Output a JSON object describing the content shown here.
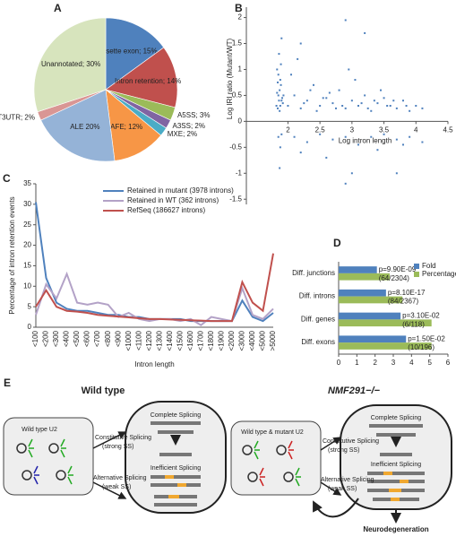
{
  "chart_data": [
    {
      "type": "pie",
      "label": "A",
      "values": [
        15,
        14,
        3,
        2,
        2,
        12,
        20,
        2,
        30
      ],
      "value_labels": [
        "Cassette exon; 15%",
        "Intron retention; 14%",
        "A5SS; 3%",
        "A3SS; 2%",
        "MXE; 2%",
        "AFE; 12%",
        "ALE 20%",
        "T3UTR; 2%",
        "Unannotated; 30%"
      ],
      "colors": [
        "#4f81bd",
        "#c0504d",
        "#9bbb59",
        "#8064a2",
        "#4bacc6",
        "#f79646",
        "#95b3d7",
        "#d99694",
        "#d7e4bd"
      ]
    },
    {
      "type": "scatter",
      "label": "B",
      "x_label": "Log intron length",
      "y_label": "Log IRI ratio (Mutant/WT)",
      "color": "#4f81bd",
      "x": [
        1.82,
        1.85,
        1.88,
        1.9,
        1.83,
        1.87,
        1.92,
        1.84,
        1.86,
        1.89,
        1.91,
        1.85,
        1.88,
        1.83,
        1.9,
        1.86,
        1.87,
        1.84,
        1.93,
        1.89,
        2.0,
        2.1,
        2.2,
        2.3,
        2.4,
        2.5,
        2.6,
        2.7,
        2.8,
        2.9,
        3.0,
        3.1,
        3.2,
        3.3,
        3.4,
        3.5,
        3.6,
        3.7,
        3.8,
        3.9,
        4.0,
        4.1,
        2.05,
        2.25,
        2.45,
        2.65,
        2.85,
        3.05,
        3.25,
        3.45,
        3.65,
        3.85,
        2.15,
        2.35,
        2.55,
        2.75,
        2.95,
        3.15,
        3.35,
        3.55,
        1.85,
        1.88,
        1.9,
        1.87,
        2.1,
        2.3,
        2.5,
        2.7,
        2.9,
        3.1,
        3.3,
        3.5,
        3.7,
        3.9,
        4.1,
        2.2,
        2.6,
        3.0,
        3.4,
        3.8,
        2.9,
        3.2,
        2.2,
        2.9,
        3.7
      ],
      "values": [
        0.3,
        0.5,
        0.8,
        0.4,
        1.0,
        0.6,
        0.35,
        0.25,
        1.3,
        0.7,
        0.45,
        0.9,
        0.3,
        0.55,
        1.6,
        0.4,
        0.2,
        0.75,
        0.5,
        1.1,
        0.3,
        0.5,
        0.25,
        0.4,
        0.7,
        0.3,
        0.45,
        0.35,
        0.6,
        0.25,
        0.4,
        0.3,
        0.5,
        0.2,
        0.35,
        0.45,
        0.3,
        0.25,
        0.4,
        0.2,
        0.3,
        0.25,
        0.9,
        0.35,
        0.2,
        0.55,
        0.3,
        0.8,
        0.25,
        0.6,
        0.4,
        0.3,
        1.2,
        0.6,
        0.45,
        0.25,
        1.0,
        0.35,
        0.4,
        0.3,
        -0.3,
        -0.5,
        -0.25,
        -0.9,
        -0.3,
        -0.4,
        -0.25,
        -0.35,
        -0.3,
        -0.45,
        -0.3,
        -0.25,
        -0.35,
        -0.3,
        -0.4,
        -0.6,
        -0.7,
        -1.0,
        -0.55,
        -0.45,
        1.95,
        1.7,
        1.5,
        -1.2,
        -1.0
      ],
      "xlim": [
        1.35,
        4.5
      ],
      "xticks": [
        2,
        2.5,
        3,
        3.5,
        4,
        4.5
      ],
      "ylim": [
        -1.6,
        2.2
      ],
      "yticks": [
        -1.5,
        -1,
        -0.5,
        0,
        0.5,
        1,
        1.5,
        2
      ]
    },
    {
      "type": "line",
      "label": "C",
      "x_label": "Intron length",
      "y_label": "Percentage of intron retention events",
      "categories": [
        "<100",
        "<200",
        "<300",
        "<400",
        "<500",
        "<600",
        "<700",
        "<800",
        "<900",
        "<1000",
        "<1100",
        "<1200",
        "<1300",
        "<1400",
        "<1500",
        "<1600",
        "<1700",
        "<1800",
        "<1900",
        "<2000",
        "<3000",
        "<4000",
        "<5000",
        ">5000"
      ],
      "series": [
        {
          "name": "Retained in mutant (3978 introns)",
          "color": "#4f81bd",
          "values": [
            30.5,
            12,
            6,
            4.5,
            4,
            4,
            3.5,
            3,
            3,
            2.5,
            2.5,
            2,
            2,
            2,
            2,
            1.5,
            1.5,
            1.5,
            1.5,
            1.5,
            6.5,
            2.5,
            1.5,
            3.5
          ]
        },
        {
          "name": "Retained in WT (362 introns)",
          "color": "#b3a2c7",
          "values": [
            3,
            10.5,
            7,
            13,
            6,
            5.5,
            6,
            5.5,
            2.5,
            3.5,
            2,
            1.5,
            2,
            2,
            1.5,
            2,
            0.5,
            2.5,
            2,
            1.5,
            9.5,
            3,
            2,
            4.5
          ]
        },
        {
          "name": "RefSeq (186627 introns)",
          "color": "#c0504d",
          "values": [
            5,
            9,
            5,
            4,
            3.8,
            3.5,
            3,
            2.8,
            2.6,
            2.4,
            2.2,
            2,
            2,
            1.9,
            1.8,
            1.7,
            1.6,
            1.5,
            1.5,
            1.5,
            11,
            6,
            4,
            18
          ]
        }
      ],
      "ylim": [
        0,
        35
      ],
      "yticks": [
        0,
        5,
        10,
        15,
        20,
        25,
        30,
        35
      ]
    },
    {
      "type": "hbar",
      "label": "D",
      "categories": [
        "Diff. junctions",
        "Diff. introns",
        "Diff. genes",
        "Diff. exons"
      ],
      "series": [
        {
          "name": "Fold",
          "color": "#4f81bd",
          "values": [
            2.1,
            2.6,
            3.4,
            3.7
          ]
        },
        {
          "name": "Percentage",
          "color": "#9bbb59",
          "values": [
            2.8,
            3.5,
            5.1,
            5.1
          ]
        }
      ],
      "p_values": [
        "p=9.90E-09",
        "p=8.10E-17",
        "p=3.10E-02",
        "p=1.50E-02"
      ],
      "counts": [
        "(64/2304)",
        "(84/2367)",
        "(6/118)",
        "(10/196)"
      ],
      "xlim": [
        0,
        6
      ],
      "xticks": [
        0,
        1,
        2,
        3,
        4,
        5,
        6
      ]
    }
  ],
  "diagram": {
    "label": "E",
    "left_title": "Wild type",
    "right_title": "NMF291−/−",
    "left_u2": "Wild type U2",
    "right_u2": "Wild type & mutant U2",
    "constitutive": "Constitutive Splicing",
    "strong": "(strong SS)",
    "alternative": "Alternative Splicing",
    "weak": "(weak SS)",
    "complete": "Complete Splicing",
    "inefficient": "Inefficient Splicing",
    "outcome": "Neurodegeneration"
  }
}
